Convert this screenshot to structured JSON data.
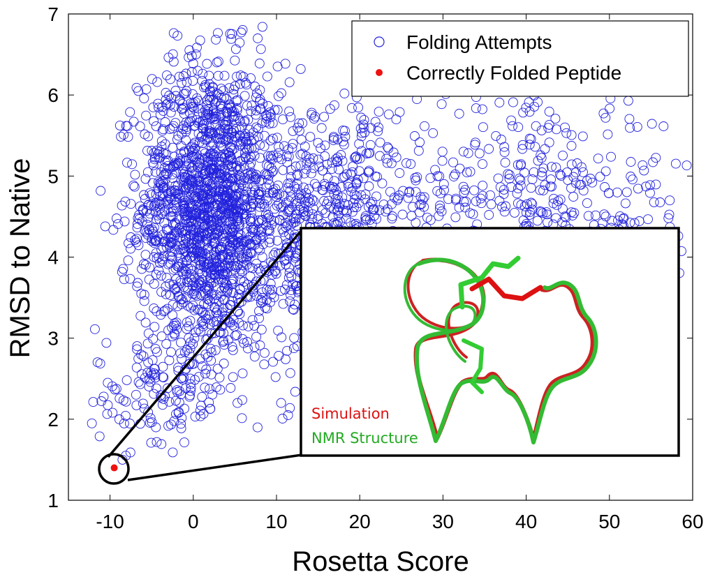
{
  "chart_data": {
    "type": "scatter",
    "xlabel": "Rosetta Score",
    "ylabel": "RMSD to Native",
    "xlim": [
      -15,
      60
    ],
    "ylim": [
      1,
      7
    ],
    "xticks": [
      "-10",
      "0",
      "10",
      "20",
      "30",
      "40",
      "50",
      "60"
    ],
    "yticks": [
      "1",
      "2",
      "3",
      "4",
      "5",
      "6",
      "7"
    ],
    "legend_position": "top-right",
    "legend": [
      "Folding Attempts",
      "Correctly Folded Peptide"
    ],
    "series": [
      {
        "name": "Folding Attempts",
        "marker": "open-circle",
        "color": "#2222dd",
        "cloud": [
          {
            "count": 1700,
            "x_mean": 2,
            "x_sd": 4.2,
            "y_mean": 4.6,
            "y_sd": 0.9,
            "x_range": [
              -14,
              14
            ],
            "y_range": [
              1.6,
              6.85
            ]
          },
          {
            "count": 700,
            "x_mean": 16,
            "x_sd": 7,
            "y_mean": 4.3,
            "y_sd": 0.85,
            "x_range": [
              8,
              34
            ],
            "y_range": [
              1.8,
              6.4
            ]
          },
          {
            "count": 420,
            "x_mean": 42,
            "x_sd": 10,
            "y_mean": 4.5,
            "y_sd": 0.7,
            "x_range": [
              22,
              60
            ],
            "y_range": [
              2.8,
              6.1
            ]
          },
          {
            "count": 120,
            "x_mean": -4,
            "x_sd": 4,
            "y_mean": 2.3,
            "y_sd": 0.35,
            "x_range": [
              -13,
              10
            ],
            "y_range": [
              1.5,
              3.2
            ]
          }
        ]
      },
      {
        "name": "Correctly Folded Peptide",
        "marker": "filled-circle",
        "color": "#ee1111",
        "points": [
          {
            "x": -9.5,
            "y": 1.4
          }
        ]
      }
    ],
    "annotations": {
      "inset_labels": [
        "Simulation",
        "NMR Structure"
      ],
      "inset_label_colors": [
        "#dd1111",
        "#22aa22"
      ]
    }
  }
}
